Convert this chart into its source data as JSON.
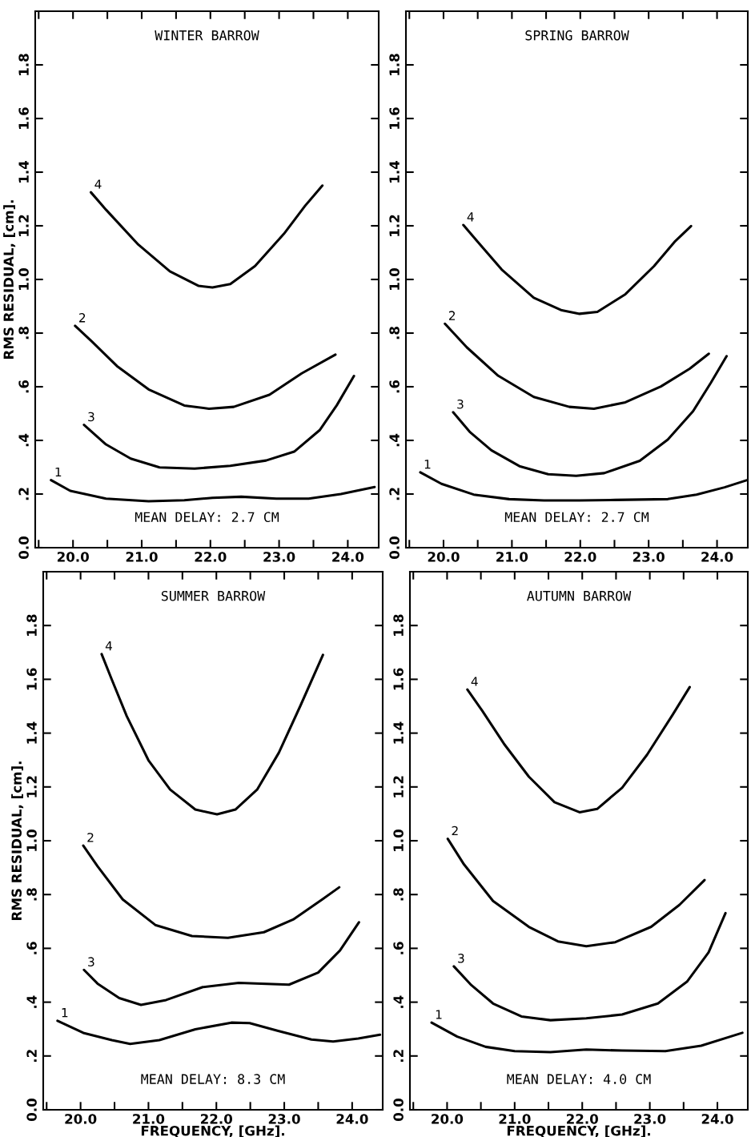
{
  "chart_data": [
    {
      "type": "line",
      "title": "WINTER BARROW",
      "ylabel": "RMS RESIDUAL, [cm].",
      "annotations": [
        "MEAN DELAY: 2.7 CM"
      ],
      "tick_labels": "xy",
      "xlim": [
        19.45,
        24.45
      ],
      "ylim": [
        0,
        2.0
      ],
      "xticks": [
        {
          "value": 19.5,
          "label": null
        },
        {
          "value": 20.0,
          "label": "20.0"
        },
        {
          "value": 20.5,
          "label": null
        },
        {
          "value": 21.0,
          "label": "21.0"
        },
        {
          "value": 21.5,
          "label": null
        },
        {
          "value": 22.0,
          "label": "22.0"
        },
        {
          "value": 22.5,
          "label": null
        },
        {
          "value": 23.0,
          "label": "23.0"
        },
        {
          "value": 23.5,
          "label": null
        },
        {
          "value": 24.0,
          "label": "24.0"
        }
      ],
      "yticks": [
        {
          "value": 0,
          "label": "0.0"
        },
        {
          "value": 0.2,
          "label": ".2"
        },
        {
          "value": 0.4,
          "label": ".4"
        },
        {
          "value": 0.6,
          "label": ".6"
        },
        {
          "value": 0.8,
          "label": ".8"
        },
        {
          "value": 1.0,
          "label": "1.0"
        },
        {
          "value": 1.2,
          "label": "1.2"
        },
        {
          "value": 1.4,
          "label": "1.4"
        },
        {
          "value": 1.6,
          "label": "1.6"
        },
        {
          "value": 1.8,
          "label": "1.8"
        }
      ],
      "line_style": "solid",
      "series": [
        {
          "name": "4",
          "color": "#000000",
          "x": [
            20.26,
            20.48,
            20.95,
            21.41,
            21.83,
            22.03,
            22.29,
            22.65,
            23.07,
            23.38,
            23.63
          ],
          "values": [
            1.325,
            1.26,
            1.13,
            1.03,
            0.976,
            0.97,
            0.983,
            1.05,
            1.17,
            1.275,
            1.35
          ]
        },
        {
          "name": "2",
          "color": "#000000",
          "x": [
            20.03,
            20.27,
            20.64,
            21.1,
            21.62,
            21.98,
            22.34,
            22.86,
            23.33,
            23.82
          ],
          "values": [
            0.827,
            0.77,
            0.677,
            0.59,
            0.53,
            0.518,
            0.525,
            0.57,
            0.65,
            0.72
          ]
        },
        {
          "name": "3",
          "color": "#000000",
          "x": [
            20.16,
            20.48,
            20.84,
            21.26,
            21.77,
            22.29,
            22.81,
            23.22,
            23.59,
            23.84,
            24.09
          ],
          "values": [
            0.458,
            0.385,
            0.332,
            0.299,
            0.295,
            0.305,
            0.325,
            0.358,
            0.438,
            0.531,
            0.64
          ]
        },
        {
          "name": "1",
          "color": "#000000",
          "x": [
            19.68,
            19.96,
            20.48,
            21.1,
            21.62,
            22.03,
            22.45,
            22.96,
            23.43,
            23.9,
            24.39
          ],
          "values": [
            0.252,
            0.212,
            0.183,
            0.173,
            0.177,
            0.186,
            0.19,
            0.183,
            0.183,
            0.2,
            0.226
          ]
        }
      ]
    },
    {
      "type": "line",
      "title": "SPRING BARROW",
      "annotations": [
        "MEAN DELAY: 2.7 CM"
      ],
      "tick_labels": "xy",
      "xlim": [
        19.45,
        24.45
      ],
      "ylim": [
        0,
        2.0
      ],
      "xticks": [
        {
          "value": 19.5,
          "label": null
        },
        {
          "value": 20.0,
          "label": "20.0"
        },
        {
          "value": 20.5,
          "label": null
        },
        {
          "value": 21.0,
          "label": "21.0"
        },
        {
          "value": 21.5,
          "label": null
        },
        {
          "value": 22.0,
          "label": "22.0"
        },
        {
          "value": 22.5,
          "label": null
        },
        {
          "value": 23.0,
          "label": "23.0"
        },
        {
          "value": 23.5,
          "label": null
        },
        {
          "value": 24.0,
          "label": "24.0"
        }
      ],
      "yticks": [
        {
          "value": 0,
          "label": "0.0"
        },
        {
          "value": 0.2,
          "label": ".2"
        },
        {
          "value": 0.4,
          "label": ".4"
        },
        {
          "value": 0.6,
          "label": ".6"
        },
        {
          "value": 0.8,
          "label": ".8"
        },
        {
          "value": 1.0,
          "label": "1.0"
        },
        {
          "value": 1.2,
          "label": "1.2"
        },
        {
          "value": 1.4,
          "label": "1.4"
        },
        {
          "value": 1.6,
          "label": "1.6"
        },
        {
          "value": 1.8,
          "label": "1.8"
        }
      ],
      "line_style": "solid",
      "series": [
        {
          "name": "4",
          "color": "#000000",
          "x": [
            20.29,
            20.49,
            20.85,
            21.32,
            21.73,
            21.99,
            22.25,
            22.66,
            23.08,
            23.39,
            23.62
          ],
          "values": [
            1.203,
            1.143,
            1.037,
            0.932,
            0.885,
            0.872,
            0.879,
            0.945,
            1.05,
            1.143,
            1.199
          ]
        },
        {
          "name": "2",
          "color": "#000000",
          "x": [
            20.02,
            20.34,
            20.8,
            21.32,
            21.84,
            22.2,
            22.66,
            23.18,
            23.6,
            23.88
          ],
          "values": [
            0.835,
            0.747,
            0.641,
            0.562,
            0.525,
            0.518,
            0.542,
            0.601,
            0.667,
            0.723
          ]
        },
        {
          "name": "3",
          "color": "#000000",
          "x": [
            20.14,
            20.39,
            20.7,
            21.11,
            21.53,
            21.94,
            22.35,
            22.87,
            23.28,
            23.65,
            23.91,
            24.14
          ],
          "values": [
            0.505,
            0.43,
            0.363,
            0.304,
            0.274,
            0.268,
            0.278,
            0.324,
            0.403,
            0.509,
            0.615,
            0.714
          ]
        },
        {
          "name": "1",
          "color": "#000000",
          "x": [
            19.66,
            19.97,
            20.44,
            20.96,
            21.47,
            21.99,
            22.51,
            23.28,
            23.7,
            24.11,
            24.43
          ],
          "values": [
            0.281,
            0.238,
            0.198,
            0.181,
            0.176,
            0.176,
            0.178,
            0.181,
            0.198,
            0.225,
            0.251
          ]
        }
      ]
    },
    {
      "type": "line",
      "title": "SUMMER BARROW",
      "xlabel": "FREQUENCY, [GHz].",
      "ylabel": "RMS RESIDUAL, [cm].",
      "annotations": [
        "MEAN DELAY: 8.3 CM"
      ],
      "tick_labels": "xy",
      "xlim": [
        19.45,
        24.45
      ],
      "ylim": [
        0,
        2.0
      ],
      "xticks": [
        {
          "value": 19.5,
          "label": null
        },
        {
          "value": 20.0,
          "label": "20.0"
        },
        {
          "value": 20.5,
          "label": null
        },
        {
          "value": 21.0,
          "label": "21.0"
        },
        {
          "value": 21.5,
          "label": null
        },
        {
          "value": 22.0,
          "label": "22.0"
        },
        {
          "value": 22.5,
          "label": null
        },
        {
          "value": 23.0,
          "label": "23.0"
        },
        {
          "value": 23.5,
          "label": null
        },
        {
          "value": 24.0,
          "label": "24.0"
        }
      ],
      "yticks": [
        {
          "value": 0,
          "label": "0.0"
        },
        {
          "value": 0.2,
          "label": ".2"
        },
        {
          "value": 0.4,
          "label": ".4"
        },
        {
          "value": 0.6,
          "label": ".6"
        },
        {
          "value": 0.8,
          "label": ".8"
        },
        {
          "value": 1.0,
          "label": "1.0"
        },
        {
          "value": 1.2,
          "label": "1.2"
        },
        {
          "value": 1.4,
          "label": "1.4"
        },
        {
          "value": 1.6,
          "label": "1.6"
        },
        {
          "value": 1.8,
          "label": "1.8"
        }
      ],
      "line_style": "solid",
      "series": [
        {
          "name": "4",
          "color": "#000000",
          "x": [
            20.31,
            20.46,
            20.68,
            21.0,
            21.32,
            21.69,
            22.01,
            22.28,
            22.6,
            22.92,
            23.24,
            23.57
          ],
          "values": [
            1.694,
            1.599,
            1.463,
            1.299,
            1.19,
            1.116,
            1.098,
            1.116,
            1.19,
            1.327,
            1.503,
            1.691
          ]
        },
        {
          "name": "2",
          "color": "#000000",
          "x": [
            20.04,
            20.25,
            20.62,
            21.1,
            21.64,
            22.17,
            22.7,
            23.13,
            23.56,
            23.81
          ],
          "values": [
            0.982,
            0.905,
            0.782,
            0.687,
            0.646,
            0.639,
            0.66,
            0.707,
            0.782,
            0.827
          ]
        },
        {
          "name": "3",
          "color": "#000000",
          "x": [
            20.05,
            20.25,
            20.57,
            20.89,
            21.26,
            21.8,
            22.33,
            23.07,
            23.5,
            23.82,
            24.1
          ],
          "values": [
            0.52,
            0.469,
            0.415,
            0.39,
            0.408,
            0.456,
            0.472,
            0.465,
            0.51,
            0.592,
            0.697
          ]
        },
        {
          "name": "1",
          "color": "#000000",
          "x": [
            19.66,
            20.04,
            20.46,
            20.73,
            21.16,
            21.69,
            22.22,
            22.49,
            22.91,
            23.4,
            23.72,
            24.09,
            24.41
          ],
          "values": [
            0.331,
            0.286,
            0.259,
            0.245,
            0.259,
            0.299,
            0.324,
            0.322,
            0.293,
            0.261,
            0.254,
            0.265,
            0.279
          ]
        }
      ]
    },
    {
      "type": "line",
      "title": "AUTUMN BARROW",
      "xlabel": "FREQUENCY, [GHz].",
      "annotations": [
        "MEAN DELAY: 4.0 CM"
      ],
      "tick_labels": "xy",
      "xlim": [
        19.45,
        24.45
      ],
      "ylim": [
        0,
        2.0
      ],
      "xticks": [
        {
          "value": 19.5,
          "label": null
        },
        {
          "value": 20.0,
          "label": "20.0"
        },
        {
          "value": 20.5,
          "label": null
        },
        {
          "value": 21.0,
          "label": "21.0"
        },
        {
          "value": 21.5,
          "label": null
        },
        {
          "value": 22.0,
          "label": "22.0"
        },
        {
          "value": 22.5,
          "label": null
        },
        {
          "value": 23.0,
          "label": "23.0"
        },
        {
          "value": 23.5,
          "label": null
        },
        {
          "value": 24.0,
          "label": "24.0"
        }
      ],
      "yticks": [
        {
          "value": 0,
          "label": "0.0"
        },
        {
          "value": 0.2,
          "label": ".2"
        },
        {
          "value": 0.4,
          "label": ".4"
        },
        {
          "value": 0.6,
          "label": ".6"
        },
        {
          "value": 0.8,
          "label": ".8"
        },
        {
          "value": 1.0,
          "label": "1.0"
        },
        {
          "value": 1.2,
          "label": "1.2"
        },
        {
          "value": 1.4,
          "label": "1.4"
        },
        {
          "value": 1.6,
          "label": "1.6"
        },
        {
          "value": 1.8,
          "label": "1.8"
        }
      ],
      "line_style": "solid",
      "series": [
        {
          "name": "4",
          "color": "#000000",
          "x": [
            20.3,
            20.52,
            20.84,
            21.21,
            21.59,
            21.96,
            22.22,
            22.59,
            22.96,
            23.34,
            23.59
          ],
          "values": [
            1.562,
            1.483,
            1.361,
            1.238,
            1.143,
            1.106,
            1.118,
            1.197,
            1.32,
            1.469,
            1.571
          ]
        },
        {
          "name": "2",
          "color": "#000000",
          "x": [
            20.01,
            20.25,
            20.68,
            21.21,
            21.64,
            22.06,
            22.49,
            23.02,
            23.44,
            23.81
          ],
          "values": [
            1.007,
            0.912,
            0.776,
            0.68,
            0.626,
            0.608,
            0.623,
            0.68,
            0.762,
            0.854
          ]
        },
        {
          "name": "3",
          "color": "#000000",
          "x": [
            20.1,
            20.36,
            20.68,
            21.1,
            21.53,
            22.06,
            22.59,
            23.12,
            23.55,
            23.87,
            24.12
          ],
          "values": [
            0.533,
            0.463,
            0.395,
            0.347,
            0.333,
            0.34,
            0.354,
            0.395,
            0.476,
            0.585,
            0.731
          ]
        },
        {
          "name": "1",
          "color": "#000000",
          "x": [
            19.77,
            20.15,
            20.57,
            21.0,
            21.53,
            22.06,
            22.59,
            23.23,
            23.76,
            24.37
          ],
          "values": [
            0.324,
            0.272,
            0.234,
            0.218,
            0.214,
            0.224,
            0.22,
            0.218,
            0.238,
            0.286
          ]
        }
      ]
    }
  ]
}
